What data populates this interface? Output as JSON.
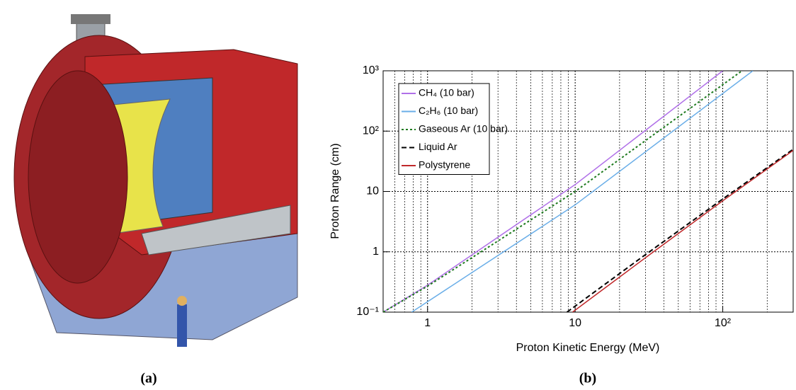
{
  "captions": [
    "(a)",
    "(b)"
  ],
  "chart_data": {
    "type": "line",
    "xlabel": "Proton Kinetic Energy (MeV)",
    "ylabel": "Proton Range (cm)",
    "xscale": "log",
    "yscale": "log",
    "xlim": [
      0.5,
      300
    ],
    "ylim": [
      0.1,
      1000
    ],
    "xticks": [
      1,
      10,
      {
        "value": 100,
        "label": "10²"
      }
    ],
    "yticks": [
      {
        "value": 0.1,
        "label": "10⁻¹"
      },
      1,
      10,
      {
        "value": 100,
        "label": "10²"
      },
      {
        "value": 1000,
        "label": "10³"
      }
    ],
    "xminorticks": [
      0.6,
      0.7,
      0.8,
      0.9,
      2,
      3,
      4,
      5,
      6,
      7,
      8,
      9,
      20,
      30,
      40,
      50,
      60,
      70,
      80,
      90,
      200,
      300
    ],
    "yminorticks": [],
    "grid": true,
    "legend": "upper left",
    "series": [
      {
        "name": "CH₄ (10 bar)",
        "color": "#b070e8",
        "dash": "solid",
        "x": [
          0.5,
          1,
          10,
          100
        ],
        "values": [
          0.1,
          0.28,
          13,
          1000
        ]
      },
      {
        "name": "C₂H₆ (10 bar)",
        "color": "#6aaee8",
        "dash": "solid",
        "x": [
          0.78,
          10,
          160
        ],
        "values": [
          0.1,
          6,
          1000
        ]
      },
      {
        "name": "Gaseous Ar (10 bar)",
        "color": "#1e7a1e",
        "dash": "dotted",
        "x": [
          0.5,
          1,
          10,
          135
        ],
        "values": [
          0.1,
          0.27,
          10,
          1000
        ]
      },
      {
        "name": "Liquid Ar",
        "color": "#000000",
        "dash": "dashed",
        "x": [
          8.8,
          30,
          100,
          300
        ],
        "values": [
          0.1,
          0.9,
          7.5,
          50
        ]
      },
      {
        "name": "Polystyrene",
        "color": "#c0282a",
        "dash": "solid",
        "x": [
          9.6,
          30,
          100,
          300
        ],
        "values": [
          0.1,
          0.8,
          7,
          48
        ]
      }
    ]
  }
}
